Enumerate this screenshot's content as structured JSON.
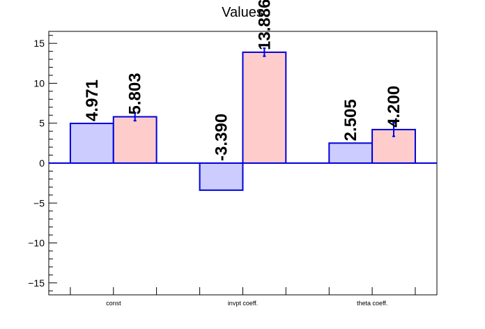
{
  "chart_data": {
    "type": "bar",
    "title": "Values",
    "xlabel": "",
    "ylabel": "",
    "categories": [
      "const",
      "invpt coeff.",
      "theta coeff."
    ],
    "ylim": [
      -16.5,
      16.5
    ],
    "yticks": [
      -15,
      -10,
      -5,
      0,
      5,
      10,
      15
    ],
    "ytick_labels": [
      "−15",
      "−10",
      "−5",
      "0",
      "5",
      "10",
      "15"
    ],
    "series": [
      {
        "values": [
          4.971,
          -3.39,
          2.505
        ],
        "labels": [
          "4.971",
          "-3.390",
          "2.505"
        ],
        "errors": [
          0,
          0,
          0
        ],
        "fill": "#ccccff",
        "stroke": "#0000dd"
      },
      {
        "values": [
          5.803,
          13.886,
          4.2
        ],
        "labels": [
          "5.803",
          "13.886",
          "4.200"
        ],
        "errors": [
          0.5,
          0.5,
          0.85
        ],
        "fill": "#ffcccc",
        "stroke": "#0000dd"
      }
    ],
    "grid": false,
    "legend": "none"
  }
}
